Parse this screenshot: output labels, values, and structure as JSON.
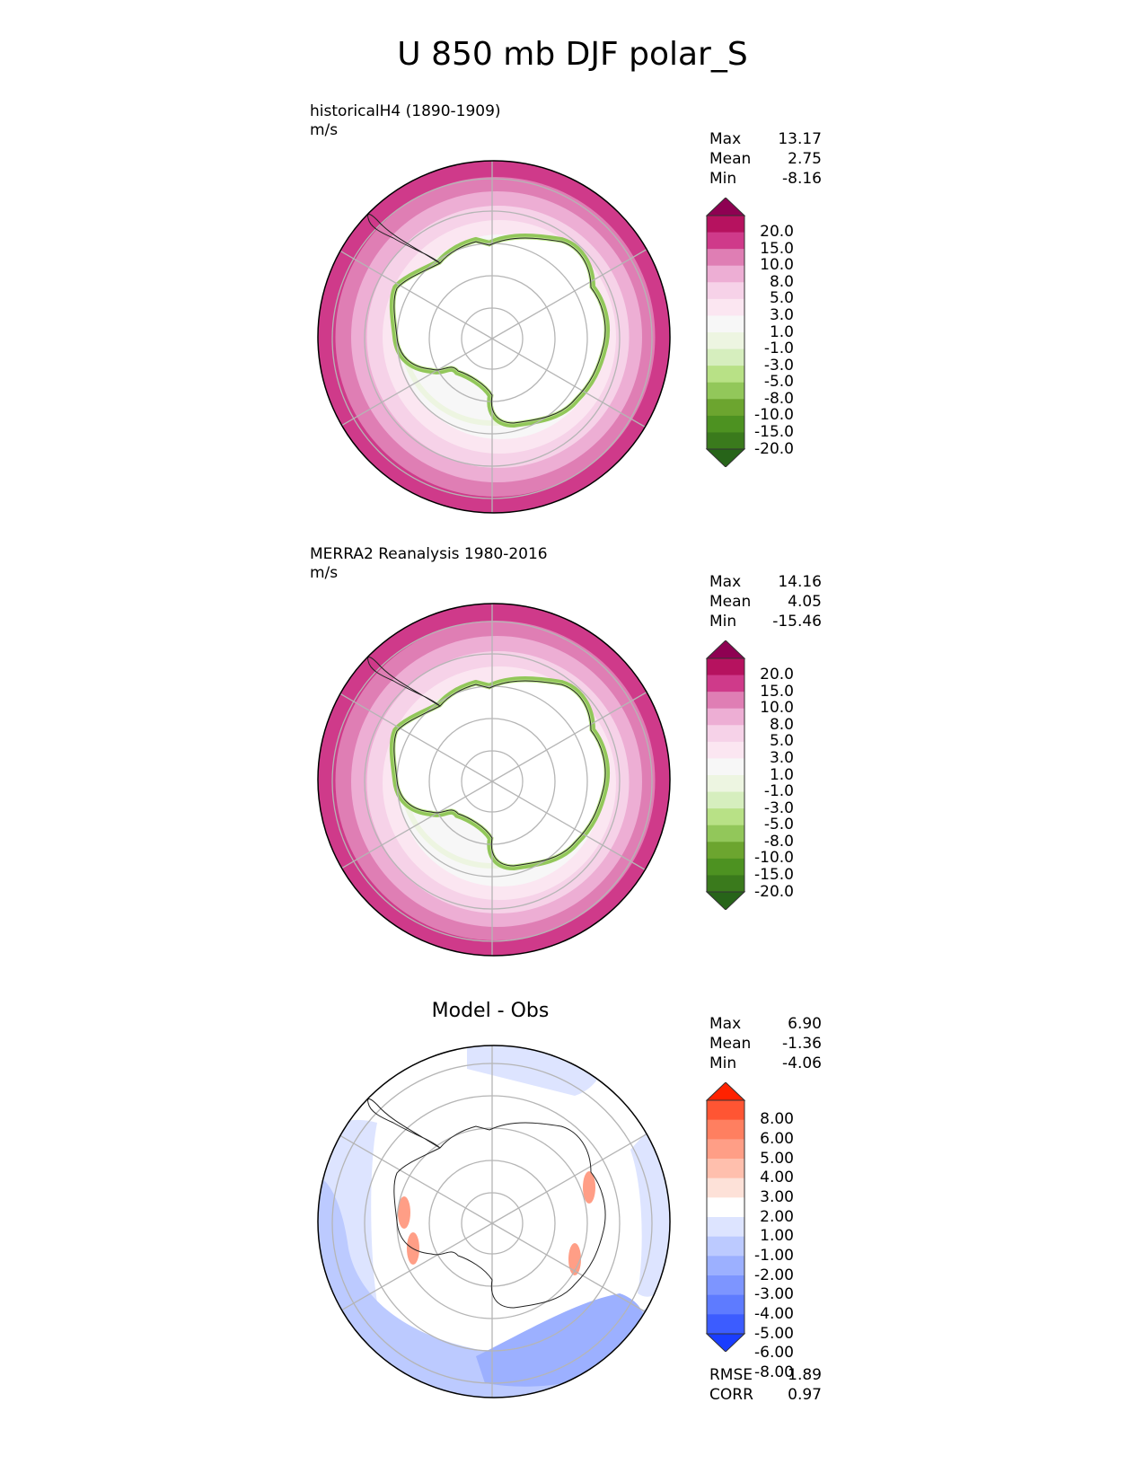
{
  "title": "U 850 mb DJF polar_S",
  "colors": {
    "diverging_pink_green": [
      "#8e0152",
      "#b6125f",
      "#cf3a8a",
      "#df7eb4",
      "#edaed4",
      "#f6d2e8",
      "#fbe6f1",
      "#f7f7f7",
      "#edf5e1",
      "#d6eebe",
      "#b8e186",
      "#92c75a",
      "#6ca52f",
      "#4d9221",
      "#3a7a1c",
      "#276419"
    ],
    "diverging_red_blue": [
      "#ff2200",
      "#ff5533",
      "#ff7f60",
      "#ff9e86",
      "#ffbfad",
      "#fde1d8",
      "#ffffff",
      "#dde4ff",
      "#bccaff",
      "#9cb0ff",
      "#7d95ff",
      "#5e7bff",
      "#3c5cff",
      "#1a3dff"
    ]
  },
  "chart_data": [
    {
      "type": "heatmap",
      "projection": "south-polar-stereographic",
      "title": "historicalH4 (1890-1909)",
      "units": "m/s",
      "stats": {
        "max": "13.17",
        "mean": "2.75",
        "min": "-8.16"
      },
      "colorbar_labels": [
        "20.0",
        "15.0",
        "10.0",
        "8.0",
        "5.0",
        "3.0",
        "1.0",
        "-1.0",
        "-3.0",
        "-5.0",
        "-8.0",
        "-10.0",
        "-15.0",
        "-20.0"
      ],
      "colorbar_extend": "both"
    },
    {
      "type": "heatmap",
      "projection": "south-polar-stereographic",
      "title": "MERRA2 Reanalysis 1980-2016",
      "units": "m/s",
      "stats": {
        "max": "14.16",
        "mean": "4.05",
        "min": "-15.46"
      },
      "colorbar_labels": [
        "20.0",
        "15.0",
        "10.0",
        "8.0",
        "5.0",
        "3.0",
        "1.0",
        "-1.0",
        "-3.0",
        "-5.0",
        "-8.0",
        "-10.0",
        "-15.0",
        "-20.0"
      ],
      "colorbar_extend": "both"
    },
    {
      "type": "heatmap",
      "projection": "south-polar-stereographic",
      "title": "Model - Obs",
      "stats": {
        "max": "6.90",
        "mean": "-1.36",
        "min": "-4.06"
      },
      "colorbar_labels": [
        "8.00",
        "6.00",
        "5.00",
        "4.00",
        "3.00",
        "2.00",
        "1.00",
        "-1.00",
        "-2.00",
        "-3.00",
        "-4.00",
        "-5.00",
        "-6.00",
        "-8.00"
      ],
      "colorbar_extend": "both",
      "metrics": {
        "rmse": "1.89",
        "corr": "0.97"
      }
    }
  ],
  "stat_labels": {
    "max": "Max",
    "mean": "Mean",
    "min": "Min",
    "rmse": "RMSE",
    "corr": "CORR"
  }
}
